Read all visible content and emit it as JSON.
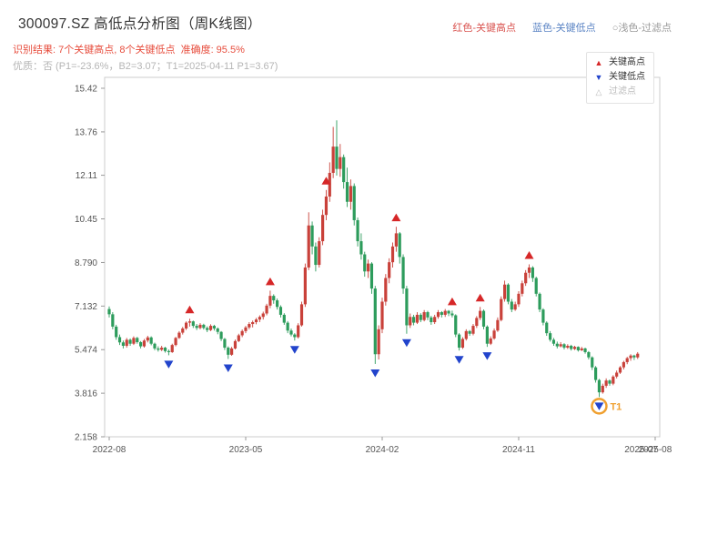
{
  "header": {
    "title": "300097.SZ 高低点分析图（周K线图）",
    "title_color": "#333333",
    "result_line": "识别结果: 7个关键高点, 8个关键低点  准确度: 95.5%",
    "result_color": "#e74c3c",
    "quality_line": "优质：否 (P1=-23.6%，B2=3.07；T1=2025-04-11 P1=3.67)",
    "quality_color": "#b5b5b5",
    "legend_top": [
      {
        "label": "红色-关键高点",
        "color": "#d9534f"
      },
      {
        "label": "蓝色-关键低点",
        "color": "#5b84c4"
      },
      {
        "label": "○浅色-过滤点",
        "color": "#9a9a9a"
      }
    ]
  },
  "chart_data": {
    "type": "candlestick",
    "interval": "week",
    "ylim": [
      2.158,
      15.835
    ],
    "y_ticks": [
      {
        "label": "15.42",
        "value": 15.42
      },
      {
        "label": "13.76",
        "value": 13.76
      },
      {
        "label": "12.11",
        "value": 12.11
      },
      {
        "label": "10.45",
        "value": 10.45
      },
      {
        "label": "8.790",
        "value": 8.79
      },
      {
        "label": "7.132",
        "value": 7.132
      },
      {
        "label": "5.474",
        "value": 5.474
      },
      {
        "label": "3.816",
        "value": 3.816
      },
      {
        "label": "2.158",
        "value": 2.158
      }
    ],
    "x_ticks": [
      {
        "label": "2022-08",
        "week": 0
      },
      {
        "label": "2023-05",
        "week": 39
      },
      {
        "label": "2024-02",
        "week": 78
      },
      {
        "label": "2024-11",
        "week": 117
      },
      {
        "label": "2025-08",
        "week": 156
      }
    ],
    "extra_x_label": {
      "label": "2025-07",
      "week": 152
    },
    "colors": {
      "up": "#c9413a",
      "down": "#2d9c5c",
      "key_high": "#d62728",
      "key_low": "#2244cc",
      "filtered": "#bbbbbb",
      "t1": "#f0a030",
      "axis": "#cccccc",
      "tick_text": "#555555"
    },
    "legend": [
      {
        "glyph": "▲",
        "label": "关键高点",
        "color": "#d62728"
      },
      {
        "glyph": "▼",
        "label": "关键低点",
        "color": "#2244cc"
      },
      {
        "glyph": "△",
        "label": "过滤点",
        "color": "#bbbbbb"
      }
    ],
    "key_high_weeks": [
      23,
      46,
      62,
      82,
      98,
      106,
      120
    ],
    "key_low_weeks": [
      17,
      34,
      53,
      76,
      85,
      100,
      108,
      140
    ],
    "t1": {
      "week": 140,
      "label": "T1",
      "price": 3.67,
      "date": "2025-04-11"
    },
    "candles": [
      [
        7.02,
        7.12,
        6.7,
        6.82
      ],
      [
        6.82,
        6.9,
        6.25,
        6.35
      ],
      [
        6.35,
        6.42,
        5.85,
        5.95
      ],
      [
        5.95,
        6.05,
        5.65,
        5.75
      ],
      [
        5.75,
        5.82,
        5.52,
        5.62
      ],
      [
        5.62,
        5.92,
        5.55,
        5.85
      ],
      [
        5.85,
        5.9,
        5.62,
        5.7
      ],
      [
        5.7,
        5.98,
        5.65,
        5.92
      ],
      [
        5.92,
        5.96,
        5.7,
        5.76
      ],
      [
        5.76,
        5.8,
        5.52,
        5.6
      ],
      [
        5.6,
        5.88,
        5.55,
        5.82
      ],
      [
        5.82,
        6.0,
        5.75,
        5.94
      ],
      [
        5.94,
        5.98,
        5.64,
        5.7
      ],
      [
        5.7,
        5.74,
        5.45,
        5.52
      ],
      [
        5.52,
        5.6,
        5.4,
        5.47
      ],
      [
        5.47,
        5.62,
        5.42,
        5.55
      ],
      [
        5.55,
        5.58,
        5.36,
        5.42
      ],
      [
        5.42,
        5.48,
        5.26,
        5.38
      ],
      [
        5.38,
        5.7,
        5.35,
        5.65
      ],
      [
        5.65,
        5.96,
        5.6,
        5.92
      ],
      [
        5.92,
        6.18,
        5.88,
        6.12
      ],
      [
        6.12,
        6.34,
        6.05,
        6.28
      ],
      [
        6.28,
        6.55,
        6.22,
        6.5
      ],
      [
        6.5,
        6.65,
        6.35,
        6.55
      ],
      [
        6.55,
        6.58,
        6.3,
        6.38
      ],
      [
        6.38,
        6.45,
        6.22,
        6.3
      ],
      [
        6.3,
        6.48,
        6.25,
        6.42
      ],
      [
        6.42,
        6.46,
        6.24,
        6.3
      ],
      [
        6.3,
        6.36,
        6.14,
        6.22
      ],
      [
        6.22,
        6.44,
        6.18,
        6.38
      ],
      [
        6.38,
        6.42,
        6.2,
        6.28
      ],
      [
        6.28,
        6.32,
        6.06,
        6.15
      ],
      [
        6.15,
        6.18,
        5.8,
        5.88
      ],
      [
        5.88,
        5.92,
        5.46,
        5.55
      ],
      [
        5.55,
        5.6,
        5.12,
        5.28
      ],
      [
        5.28,
        5.58,
        5.24,
        5.52
      ],
      [
        5.52,
        5.86,
        5.48,
        5.8
      ],
      [
        5.8,
        6.08,
        5.76,
        6.02
      ],
      [
        6.02,
        6.24,
        5.95,
        6.18
      ],
      [
        6.18,
        6.38,
        6.1,
        6.32
      ],
      [
        6.32,
        6.52,
        6.25,
        6.45
      ],
      [
        6.45,
        6.58,
        6.32,
        6.52
      ],
      [
        6.52,
        6.68,
        6.44,
        6.62
      ],
      [
        6.62,
        6.78,
        6.52,
        6.72
      ],
      [
        6.72,
        6.92,
        6.62,
        6.85
      ],
      [
        6.85,
        7.22,
        6.78,
        7.15
      ],
      [
        7.15,
        7.72,
        7.05,
        7.52
      ],
      [
        7.52,
        7.58,
        7.22,
        7.35
      ],
      [
        7.35,
        7.42,
        7.0,
        7.1
      ],
      [
        7.1,
        7.16,
        6.7,
        6.8
      ],
      [
        6.8,
        6.86,
        6.42,
        6.5
      ],
      [
        6.5,
        6.56,
        6.1,
        6.2
      ],
      [
        6.2,
        6.28,
        5.98,
        6.05
      ],
      [
        6.05,
        6.1,
        5.82,
        5.95
      ],
      [
        5.95,
        6.48,
        5.9,
        6.4
      ],
      [
        6.4,
        7.3,
        6.35,
        7.2
      ],
      [
        7.2,
        8.75,
        7.1,
        8.6
      ],
      [
        8.6,
        10.7,
        8.5,
        10.2
      ],
      [
        10.2,
        10.35,
        9.1,
        9.4
      ],
      [
        9.4,
        9.55,
        8.45,
        8.7
      ],
      [
        8.7,
        9.75,
        8.6,
        9.6
      ],
      [
        9.6,
        10.8,
        9.45,
        10.6
      ],
      [
        10.6,
        11.55,
        10.4,
        11.3
      ],
      [
        11.3,
        12.6,
        11.1,
        12.2
      ],
      [
        12.2,
        13.95,
        12.0,
        13.2
      ],
      [
        13.2,
        14.2,
        12.1,
        12.35
      ],
      [
        12.35,
        13.3,
        12.05,
        12.8
      ],
      [
        12.8,
        12.9,
        11.6,
        11.85
      ],
      [
        11.85,
        12.4,
        10.9,
        11.1
      ],
      [
        11.1,
        11.95,
        10.8,
        11.7
      ],
      [
        11.7,
        11.8,
        10.2,
        10.4
      ],
      [
        10.4,
        10.5,
        9.4,
        9.6
      ],
      [
        9.6,
        9.9,
        8.9,
        9.1
      ],
      [
        9.1,
        9.2,
        8.25,
        8.45
      ],
      [
        8.45,
        8.9,
        8.2,
        8.75
      ],
      [
        8.75,
        8.8,
        7.6,
        7.8
      ],
      [
        7.8,
        7.9,
        4.93,
        5.3
      ],
      [
        5.3,
        6.4,
        5.1,
        6.25
      ],
      [
        6.25,
        7.45,
        6.1,
        7.3
      ],
      [
        7.3,
        8.35,
        7.15,
        8.2
      ],
      [
        8.2,
        8.95,
        8.0,
        8.8
      ],
      [
        8.8,
        9.55,
        8.6,
        9.4
      ],
      [
        9.4,
        10.15,
        9.2,
        9.9
      ],
      [
        9.9,
        9.95,
        8.75,
        9.0
      ],
      [
        9.0,
        9.1,
        7.6,
        7.8
      ],
      [
        7.8,
        7.9,
        6.08,
        6.4
      ],
      [
        6.4,
        6.85,
        6.3,
        6.72
      ],
      [
        6.72,
        6.8,
        6.4,
        6.5
      ],
      [
        6.5,
        6.9,
        6.45,
        6.8
      ],
      [
        6.8,
        6.86,
        6.52,
        6.6
      ],
      [
        6.6,
        6.98,
        6.55,
        6.9
      ],
      [
        6.9,
        6.95,
        6.6,
        6.7
      ],
      [
        6.7,
        6.76,
        6.42,
        6.52
      ],
      [
        6.52,
        6.8,
        6.45,
        6.72
      ],
      [
        6.72,
        6.98,
        6.65,
        6.9
      ],
      [
        6.9,
        6.94,
        6.7,
        6.8
      ],
      [
        6.8,
        7.02,
        6.72,
        6.95
      ],
      [
        6.95,
        6.98,
        6.75,
        6.85
      ],
      [
        6.85,
        6.96,
        6.7,
        6.78
      ],
      [
        6.78,
        6.82,
        5.95,
        6.05
      ],
      [
        6.05,
        6.1,
        5.44,
        5.55
      ],
      [
        5.55,
        5.95,
        5.5,
        5.88
      ],
      [
        5.88,
        6.25,
        5.82,
        6.18
      ],
      [
        6.18,
        6.22,
        6.0,
        6.08
      ],
      [
        6.08,
        6.45,
        6.02,
        6.38
      ],
      [
        6.38,
        6.75,
        6.3,
        6.68
      ],
      [
        6.68,
        7.1,
        6.6,
        6.95
      ],
      [
        6.95,
        7.0,
        6.25,
        6.35
      ],
      [
        6.35,
        6.4,
        5.58,
        5.7
      ],
      [
        5.7,
        5.98,
        5.65,
        5.9
      ],
      [
        5.9,
        6.28,
        5.85,
        6.2
      ],
      [
        6.2,
        6.7,
        6.15,
        6.6
      ],
      [
        6.6,
        7.5,
        6.55,
        7.4
      ],
      [
        7.4,
        8.1,
        7.3,
        7.95
      ],
      [
        7.95,
        8.0,
        7.2,
        7.3
      ],
      [
        7.3,
        7.4,
        6.9,
        7.0
      ],
      [
        7.0,
        7.3,
        6.95,
        7.2
      ],
      [
        7.2,
        7.7,
        7.1,
        7.6
      ],
      [
        7.6,
        8.1,
        7.5,
        8.0
      ],
      [
        8.0,
        8.5,
        7.9,
        8.4
      ],
      [
        8.4,
        8.72,
        8.2,
        8.6
      ],
      [
        8.6,
        8.65,
        8.05,
        8.2
      ],
      [
        8.2,
        8.25,
        7.5,
        7.6
      ],
      [
        7.6,
        7.65,
        6.9,
        7.0
      ],
      [
        7.0,
        7.05,
        6.4,
        6.5
      ],
      [
        6.5,
        6.55,
        6.0,
        6.1
      ],
      [
        6.1,
        6.18,
        5.78,
        5.85
      ],
      [
        5.85,
        5.92,
        5.62,
        5.7
      ],
      [
        5.7,
        5.78,
        5.52,
        5.6
      ],
      [
        5.6,
        5.76,
        5.56,
        5.68
      ],
      [
        5.68,
        5.72,
        5.48,
        5.55
      ],
      [
        5.55,
        5.68,
        5.5,
        5.62
      ],
      [
        5.62,
        5.66,
        5.44,
        5.5
      ],
      [
        5.5,
        5.62,
        5.46,
        5.58
      ],
      [
        5.58,
        5.6,
        5.4,
        5.45
      ],
      [
        5.45,
        5.58,
        5.42,
        5.52
      ],
      [
        5.52,
        5.55,
        5.32,
        5.38
      ],
      [
        5.38,
        5.42,
        5.1,
        5.18
      ],
      [
        5.18,
        5.22,
        4.7,
        4.8
      ],
      [
        4.8,
        4.85,
        4.22,
        4.32
      ],
      [
        4.32,
        4.36,
        3.67,
        3.85
      ],
      [
        3.85,
        4.18,
        3.8,
        4.1
      ],
      [
        4.1,
        4.38,
        4.02,
        4.3
      ],
      [
        4.3,
        4.34,
        4.1,
        4.18
      ],
      [
        4.18,
        4.5,
        4.12,
        4.45
      ],
      [
        4.45,
        4.68,
        4.38,
        4.6
      ],
      [
        4.6,
        4.85,
        4.55,
        4.8
      ],
      [
        4.8,
        5.05,
        4.72,
        5.0
      ],
      [
        5.0,
        5.2,
        4.92,
        5.15
      ],
      [
        5.15,
        5.3,
        5.05,
        5.25
      ],
      [
        5.25,
        5.28,
        5.08,
        5.18
      ],
      [
        5.18,
        5.38,
        5.12,
        5.32
      ]
    ]
  }
}
